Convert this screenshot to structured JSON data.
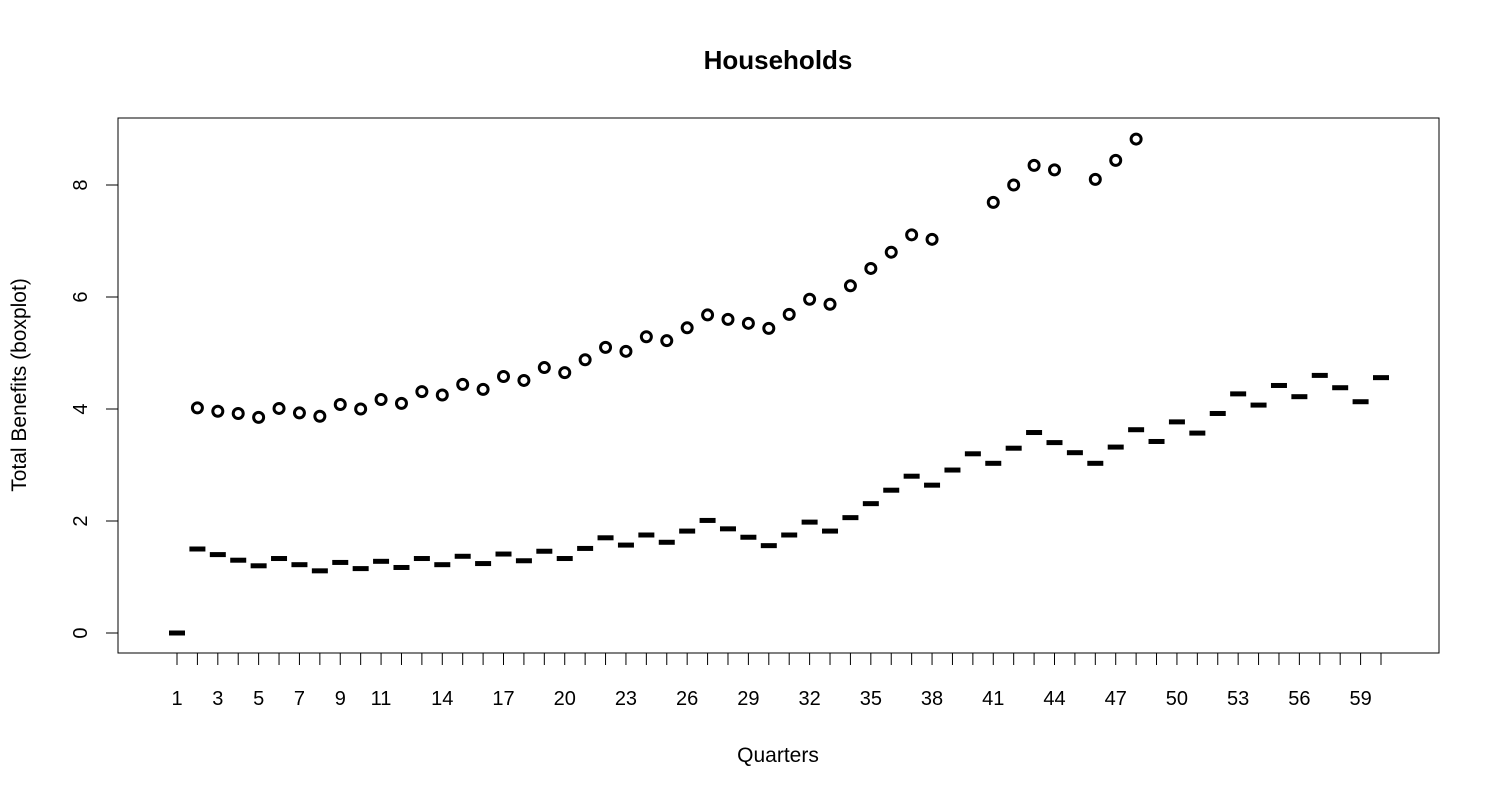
{
  "chart_data": {
    "type": "boxplot",
    "title": "Households",
    "xlabel": "Quarters",
    "ylabel": "Total Benefits (boxplot)",
    "ylim": [
      -0.3,
      9.2
    ],
    "y_ticks": [
      0,
      2,
      4,
      6,
      8
    ],
    "x_tick_labels": [
      "1",
      "3",
      "5",
      "7",
      "9",
      "11",
      "14",
      "17",
      "20",
      "23",
      "26",
      "29",
      "32",
      "35",
      "38",
      "41",
      "44",
      "47",
      "50",
      "53",
      "56",
      "59"
    ],
    "categories": [
      "1",
      "2",
      "3",
      "4",
      "5",
      "6",
      "7",
      "8",
      "9",
      "10",
      "11",
      "12",
      "13",
      "14",
      "15",
      "16",
      "17",
      "18",
      "19",
      "20",
      "21",
      "22",
      "23",
      "24",
      "25",
      "26",
      "27",
      "28",
      "29",
      "30",
      "31",
      "32",
      "33",
      "34",
      "35",
      "36",
      "37",
      "38",
      "39",
      "40",
      "41",
      "42",
      "43",
      "44",
      "45",
      "46",
      "47",
      "48",
      "49",
      "50",
      "51",
      "52",
      "53",
      "54",
      "55",
      "56",
      "57",
      "58",
      "59",
      "60"
    ],
    "medians": [
      0.0,
      1.5,
      1.4,
      1.3,
      1.2,
      1.33,
      1.22,
      1.11,
      1.26,
      1.15,
      1.28,
      1.17,
      1.33,
      1.22,
      1.37,
      1.24,
      1.41,
      1.29,
      1.46,
      1.33,
      1.51,
      1.7,
      1.57,
      1.75,
      1.62,
      1.82,
      2.01,
      1.86,
      1.71,
      1.56,
      1.75,
      1.98,
      1.82,
      2.06,
      2.31,
      2.55,
      2.8,
      2.64,
      2.91,
      3.2,
      3.03,
      3.3,
      3.58,
      3.4,
      3.22,
      3.03,
      3.32,
      3.63,
      3.42,
      3.77,
      3.57,
      3.92,
      4.27,
      4.07,
      4.42,
      4.22,
      4.6,
      4.38,
      4.13,
      4.56
    ],
    "outliers": [
      null,
      4.02,
      3.96,
      3.92,
      3.85,
      4.01,
      3.93,
      3.87,
      4.08,
      4.0,
      4.17,
      4.1,
      4.31,
      4.25,
      4.44,
      4.35,
      4.58,
      4.51,
      4.74,
      4.65,
      4.88,
      5.1,
      5.03,
      5.29,
      5.22,
      5.45,
      5.68,
      5.6,
      5.53,
      5.44,
      5.69,
      5.96,
      5.87,
      6.2,
      6.51,
      6.8,
      7.11,
      7.03,
      null,
      null,
      7.69,
      8.0,
      8.35,
      8.27,
      null,
      8.1,
      8.44,
      8.82,
      null,
      null,
      null,
      null,
      null,
      null,
      null,
      null,
      null,
      null,
      null,
      null
    ],
    "grid": false,
    "legend": "none"
  }
}
